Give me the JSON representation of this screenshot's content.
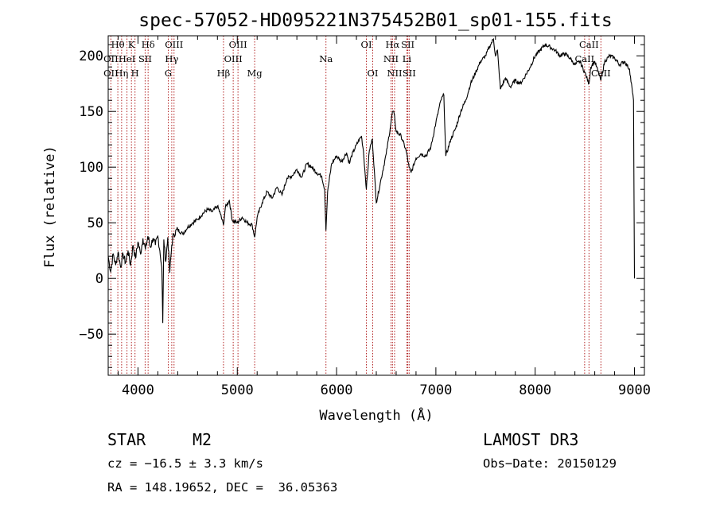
{
  "chart_data": {
    "type": "line",
    "title": "spec-57052-HD095221N375452B01_sp01-155.fits",
    "xlabel": "Wavelength (Å)",
    "ylabel": "Flux (relative)",
    "xlim": [
      3700,
      9100
    ],
    "ylim": [
      -87,
      218
    ],
    "x_ticks": [
      4000,
      5000,
      6000,
      7000,
      8000,
      9000
    ],
    "y_ticks": [
      -50,
      0,
      50,
      100,
      150,
      200
    ],
    "grid": false,
    "series_name": "spectrum",
    "series_color": "#000000",
    "marker_color": "#b22222",
    "spectrum": [
      [
        3700,
        20
      ],
      [
        3725,
        6
      ],
      [
        3750,
        22
      ],
      [
        3775,
        12
      ],
      [
        3800,
        24
      ],
      [
        3825,
        10
      ],
      [
        3850,
        22
      ],
      [
        3875,
        14
      ],
      [
        3900,
        25
      ],
      [
        3925,
        12
      ],
      [
        3950,
        30
      ],
      [
        3975,
        18
      ],
      [
        4000,
        33
      ],
      [
        4025,
        22
      ],
      [
        4050,
        36
      ],
      [
        4075,
        26
      ],
      [
        4100,
        38
      ],
      [
        4125,
        28
      ],
      [
        4150,
        36
      ],
      [
        4175,
        30
      ],
      [
        4200,
        38
      ],
      [
        4220,
        25
      ],
      [
        4240,
        10
      ],
      [
        4250,
        -40
      ],
      [
        4260,
        35
      ],
      [
        4280,
        15
      ],
      [
        4300,
        37
      ],
      [
        4320,
        5
      ],
      [
        4340,
        30
      ],
      [
        4360,
        40
      ],
      [
        4400,
        44
      ],
      [
        4450,
        40
      ],
      [
        4500,
        46
      ],
      [
        4550,
        50
      ],
      [
        4600,
        53
      ],
      [
        4650,
        58
      ],
      [
        4700,
        62
      ],
      [
        4750,
        60
      ],
      [
        4800,
        65
      ],
      [
        4830,
        58
      ],
      [
        4861,
        48
      ],
      [
        4880,
        64
      ],
      [
        4920,
        70
      ],
      [
        4950,
        52
      ],
      [
        5000,
        50
      ],
      [
        5050,
        55
      ],
      [
        5100,
        50
      ],
      [
        5150,
        48
      ],
      [
        5175,
        37
      ],
      [
        5200,
        55
      ],
      [
        5250,
        68
      ],
      [
        5300,
        78
      ],
      [
        5350,
        72
      ],
      [
        5400,
        82
      ],
      [
        5450,
        75
      ],
      [
        5500,
        90
      ],
      [
        5550,
        92
      ],
      [
        5600,
        98
      ],
      [
        5650,
        91
      ],
      [
        5700,
        103
      ],
      [
        5750,
        100
      ],
      [
        5800,
        95
      ],
      [
        5850,
        92
      ],
      [
        5880,
        80
      ],
      [
        5893,
        43
      ],
      [
        5910,
        78
      ],
      [
        5950,
        103
      ],
      [
        6000,
        110
      ],
      [
        6050,
        105
      ],
      [
        6100,
        113
      ],
      [
        6130,
        103
      ],
      [
        6150,
        110
      ],
      [
        6200,
        120
      ],
      [
        6250,
        128
      ],
      [
        6270,
        115
      ],
      [
        6300,
        80
      ],
      [
        6330,
        115
      ],
      [
        6360,
        125
      ],
      [
        6400,
        68
      ],
      [
        6450,
        90
      ],
      [
        6500,
        112
      ],
      [
        6540,
        135
      ],
      [
        6563,
        150
      ],
      [
        6580,
        148
      ],
      [
        6600,
        132
      ],
      [
        6650,
        128
      ],
      [
        6700,
        115
      ],
      [
        6730,
        100
      ],
      [
        6750,
        95
      ],
      [
        6800,
        108
      ],
      [
        6850,
        112
      ],
      [
        6900,
        110
      ],
      [
        6950,
        118
      ],
      [
        7000,
        140
      ],
      [
        7050,
        160
      ],
      [
        7080,
        165
      ],
      [
        7100,
        110
      ],
      [
        7150,
        125
      ],
      [
        7200,
        135
      ],
      [
        7250,
        150
      ],
      [
        7300,
        160
      ],
      [
        7350,
        175
      ],
      [
        7400,
        185
      ],
      [
        7450,
        195
      ],
      [
        7500,
        200
      ],
      [
        7550,
        210
      ],
      [
        7580,
        215
      ],
      [
        7600,
        200
      ],
      [
        7620,
        205
      ],
      [
        7650,
        170
      ],
      [
        7700,
        180
      ],
      [
        7750,
        172
      ],
      [
        7800,
        178
      ],
      [
        7850,
        175
      ],
      [
        7900,
        182
      ],
      [
        7950,
        190
      ],
      [
        8000,
        200
      ],
      [
        8050,
        205
      ],
      [
        8100,
        210
      ],
      [
        8150,
        208
      ],
      [
        8200,
        205
      ],
      [
        8250,
        200
      ],
      [
        8300,
        202
      ],
      [
        8350,
        198
      ],
      [
        8400,
        192
      ],
      [
        8450,
        195
      ],
      [
        8500,
        185
      ],
      [
        8542,
        175
      ],
      [
        8560,
        190
      ],
      [
        8600,
        195
      ],
      [
        8662,
        178
      ],
      [
        8700,
        195
      ],
      [
        8750,
        200
      ],
      [
        8800,
        198
      ],
      [
        8850,
        192
      ],
      [
        8900,
        195
      ],
      [
        8950,
        188
      ],
      [
        8990,
        160
      ],
      [
        9000,
        0
      ]
    ],
    "emission_lines": [
      {
        "label": "OII",
        "wave": 3727,
        "row": 2
      },
      {
        "label": "OII",
        "wave": 3727,
        "row": 3
      },
      {
        "label": "Hθ",
        "wave": 3797,
        "row": 1
      },
      {
        "label": "Hη",
        "wave": 3835,
        "row": 3
      },
      {
        "label": "K",
        "wave": 3934,
        "row": 1
      },
      {
        "label": "HeI",
        "wave": 3889,
        "row": 2
      },
      {
        "label": "H",
        "wave": 3970,
        "row": 3
      },
      {
        "label": "SII",
        "wave": 4072,
        "row": 2
      },
      {
        "label": "Hδ",
        "wave": 4102,
        "row": 1
      },
      {
        "label": "OIII",
        "wave": 4363,
        "row": 1
      },
      {
        "label": "Hγ",
        "wave": 4340,
        "row": 2
      },
      {
        "label": "G",
        "wave": 4305,
        "row": 3
      },
      {
        "label": "Hβ",
        "wave": 4861,
        "row": 3
      },
      {
        "label": "OIII",
        "wave": 5007,
        "row": 1
      },
      {
        "label": "OIII",
        "wave": 4959,
        "row": 2
      },
      {
        "label": "Mg",
        "wave": 5175,
        "row": 3
      },
      {
        "label": "Na",
        "wave": 5893,
        "row": 2
      },
      {
        "label": "OI",
        "wave": 6300,
        "row": 1
      },
      {
        "label": "OI",
        "wave": 6364,
        "row": 3
      },
      {
        "label": "Hα",
        "wave": 6563,
        "row": 1
      },
      {
        "label": "NII",
        "wave": 6548,
        "row": 2
      },
      {
        "label": "NII",
        "wave": 6584,
        "row": 3
      },
      {
        "label": "SII",
        "wave": 6717,
        "row": 1
      },
      {
        "label": "Li",
        "wave": 6708,
        "row": 2
      },
      {
        "label": "SII",
        "wave": 6731,
        "row": 3
      },
      {
        "label": "CaII",
        "wave": 8542,
        "row": 1
      },
      {
        "label": "CaII",
        "wave": 8498,
        "row": 2
      },
      {
        "label": "CaII",
        "wave": 8662,
        "row": 3
      }
    ],
    "marker_waves": [
      3727,
      3797,
      3835,
      3889,
      3934,
      3970,
      4072,
      4102,
      4305,
      4340,
      4363,
      4861,
      4959,
      5007,
      5175,
      5893,
      6300,
      6364,
      6548,
      6563,
      6584,
      6708,
      6717,
      6731,
      8498,
      8542,
      8662
    ]
  },
  "info": {
    "class": "STAR",
    "subclass": "M2",
    "survey": "LAMOST DR3",
    "cz": "cz = −16.5 ± 3.3 km/s",
    "obs_date": "Obs−Date: 20150129",
    "coords": "RA = 148.19652, DEC =  36.05363"
  }
}
